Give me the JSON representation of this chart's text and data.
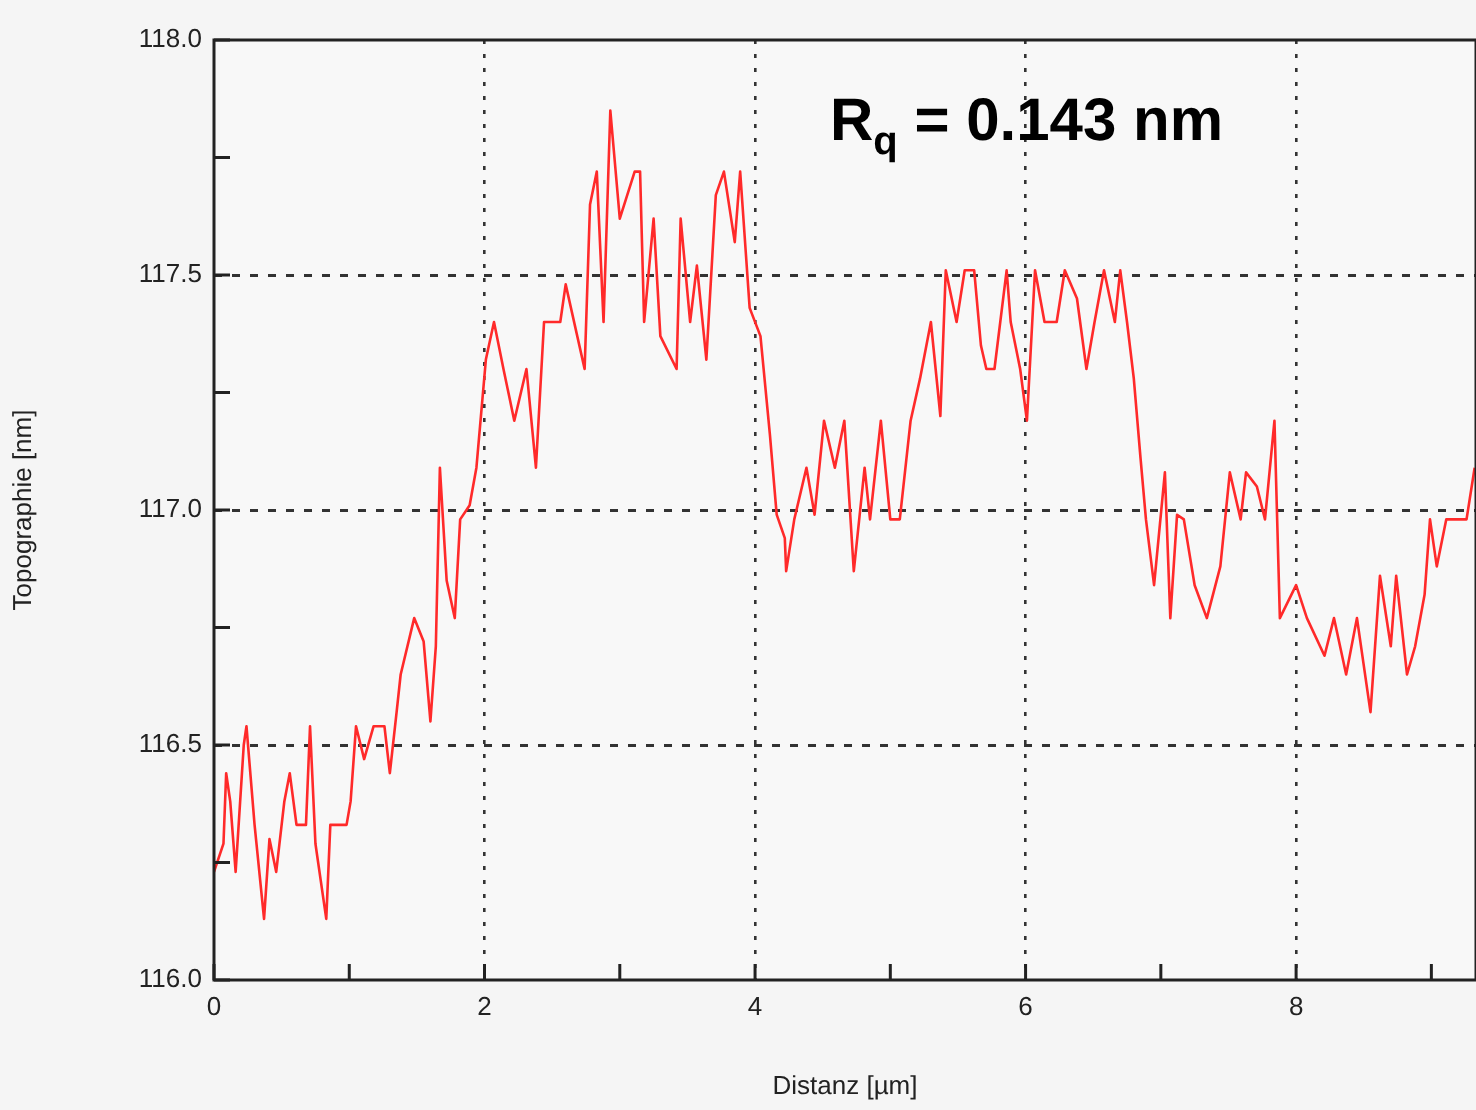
{
  "chart_data": {
    "type": "line",
    "xlabel": "Distanz [µm]",
    "ylabel": "Topographie [nm]",
    "annotations": [
      "R$_{q}$ = 0.143 nm"
    ],
    "xlim": [
      0,
      9.33
    ],
    "xticks": [
      0,
      {
        "value": 1,
        "label": null
      },
      2,
      {
        "value": 3,
        "label": null
      },
      4,
      {
        "value": 5,
        "label": null
      },
      6,
      {
        "value": 7,
        "label": null
      },
      8,
      {
        "value": 9,
        "label": null
      }
    ],
    "ylim": [
      116,
      118
    ],
    "yticks": [
      {
        "value": 116,
        "label": "116.0"
      },
      {
        "value": 116.25,
        "label": null
      },
      {
        "value": 116.5,
        "label": "116.5"
      },
      {
        "value": 116.75,
        "label": null
      },
      {
        "value": 117,
        "label": "117.0"
      },
      {
        "value": 117.25,
        "label": null
      },
      {
        "value": 117.5,
        "label": "117.5"
      },
      {
        "value": 117.75,
        "label": null
      },
      {
        "value": 118,
        "label": "118.0"
      }
    ],
    "grid": true,
    "legend": false,
    "marker": "none",
    "line_style": "solid",
    "series": [
      {
        "color": "#ff2a2a",
        "x": [
          0,
          0.07,
          0.09,
          0.12,
          0.16,
          0.22,
          0.24,
          0.3,
          0.37,
          0.41,
          0.46,
          0.52,
          0.56,
          0.61,
          0.68,
          0.71,
          0.75,
          0.81,
          0.83,
          0.86,
          0.98,
          1.01,
          1.05,
          1.11,
          1.18,
          1.26,
          1.3,
          1.35,
          1.38,
          1.48,
          1.55,
          1.6,
          1.64,
          1.67,
          1.72,
          1.78,
          1.82,
          1.89,
          1.94,
          2.01,
          2.07,
          2.14,
          2.22,
          2.31,
          2.38,
          2.44,
          2.56,
          2.6,
          2.74,
          2.78,
          2.83,
          2.88,
          2.93,
          3.0,
          3.11,
          3.15,
          3.18,
          3.25,
          3.3,
          3.42,
          3.45,
          3.52,
          3.57,
          3.64,
          3.71,
          3.77,
          3.85,
          3.89,
          3.96,
          4.04,
          4.11,
          4.16,
          4.22,
          4.23,
          4.29,
          4.38,
          4.44,
          4.51,
          4.59,
          4.66,
          4.73,
          4.81,
          4.85,
          4.93,
          5.0,
          5.07,
          5.15,
          5.22,
          5.3,
          5.37,
          5.41,
          5.49,
          5.55,
          5.62,
          5.67,
          5.71,
          5.77,
          5.86,
          5.89,
          5.96,
          6.01,
          6.07,
          6.14,
          6.23,
          6.29,
          6.38,
          6.45,
          6.51,
          6.58,
          6.66,
          6.7,
          6.75,
          6.8,
          6.85,
          6.89,
          6.95,
          7.03,
          7.07,
          7.12,
          7.17,
          7.25,
          7.34,
          7.44,
          7.51,
          7.59,
          7.63,
          7.71,
          7.77,
          7.84,
          7.88,
          8.0,
          8.08,
          8.21,
          8.28,
          8.37,
          8.45,
          8.55,
          8.62,
          8.7,
          8.74,
          8.82,
          8.88,
          8.95,
          8.99,
          9.04,
          9.11,
          9.26,
          9.32
        ],
        "values": [
          116.23,
          116.29,
          116.44,
          116.38,
          116.23,
          116.5,
          116.54,
          116.33,
          116.13,
          116.3,
          116.23,
          116.38,
          116.44,
          116.33,
          116.33,
          116.54,
          116.29,
          116.17,
          116.13,
          116.33,
          116.33,
          116.38,
          116.54,
          116.47,
          116.54,
          116.54,
          116.44,
          116.57,
          116.65,
          116.77,
          116.72,
          116.55,
          116.71,
          117.09,
          116.85,
          116.77,
          116.98,
          117.01,
          117.09,
          117.32,
          117.4,
          117.3,
          117.19,
          117.3,
          117.09,
          117.4,
          117.4,
          117.48,
          117.3,
          117.65,
          117.72,
          117.4,
          117.85,
          117.62,
          117.72,
          117.72,
          117.4,
          117.62,
          117.37,
          117.3,
          117.62,
          117.4,
          117.52,
          117.32,
          117.67,
          117.72,
          117.57,
          117.72,
          117.43,
          117.37,
          117.16,
          116.99,
          116.94,
          116.87,
          116.98,
          117.09,
          116.99,
          117.19,
          117.09,
          117.19,
          116.87,
          117.09,
          116.98,
          117.19,
          116.98,
          116.98,
          117.19,
          117.28,
          117.4,
          117.2,
          117.51,
          117.4,
          117.51,
          117.51,
          117.35,
          117.3,
          117.3,
          117.51,
          117.4,
          117.3,
          117.19,
          117.51,
          117.4,
          117.4,
          117.51,
          117.45,
          117.3,
          117.4,
          117.51,
          117.4,
          117.51,
          117.4,
          117.28,
          117.11,
          116.98,
          116.84,
          117.08,
          116.77,
          116.99,
          116.98,
          116.84,
          116.77,
          116.88,
          117.08,
          116.98,
          117.08,
          117.05,
          116.98,
          117.19,
          116.77,
          116.84,
          116.77,
          116.69,
          116.77,
          116.65,
          116.77,
          116.57,
          116.86,
          116.71,
          116.86,
          116.65,
          116.71,
          116.82,
          116.98,
          116.88,
          116.98,
          116.98,
          117.09
        ]
      }
    ]
  }
}
